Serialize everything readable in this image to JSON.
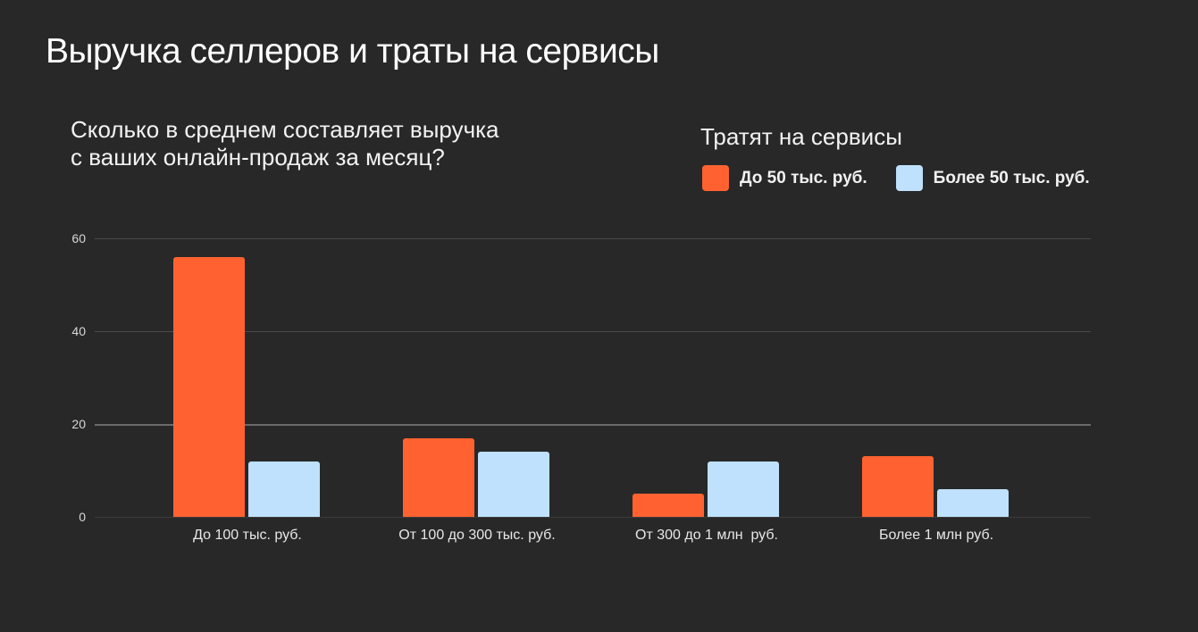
{
  "title": "Выручка селлеров и траты на сервисы",
  "subtitle_line1": "Сколько в среднем составляет выручка",
  "subtitle_line2": "с ваших онлайн-продаж за месяц?",
  "legend": {
    "title": "Тратят на сервисы",
    "items": [
      {
        "label": "До 50 тыс. руб.",
        "color": "#FF6230"
      },
      {
        "label": "Более 50 тыс. руб.",
        "color": "#BFE1FD"
      }
    ]
  },
  "chart_data": {
    "type": "bar",
    "title": "Сколько в среднем составляет выручка с ваших онлайн-продаж за месяц?",
    "xlabel": "",
    "ylabel": "",
    "ylim": [
      0,
      60
    ],
    "yticks": [
      "0",
      "20",
      "40",
      "60"
    ],
    "grid": true,
    "legend_position": "top-right",
    "legend_title": "Тратят на сервисы",
    "categories": [
      "До 100 тыс. руб.",
      "От 100 до 300 тыс. руб.",
      "От 300 до 1 млн  руб.",
      "Более 1 млн руб."
    ],
    "series": [
      {
        "name": "До 50 тыс. руб.",
        "color": "#FF6230",
        "values": [
          56,
          17,
          5,
          13
        ]
      },
      {
        "name": "Более 50 тыс. руб.",
        "color": "#BFE1FD",
        "values": [
          12,
          14,
          12,
          6
        ]
      }
    ]
  }
}
